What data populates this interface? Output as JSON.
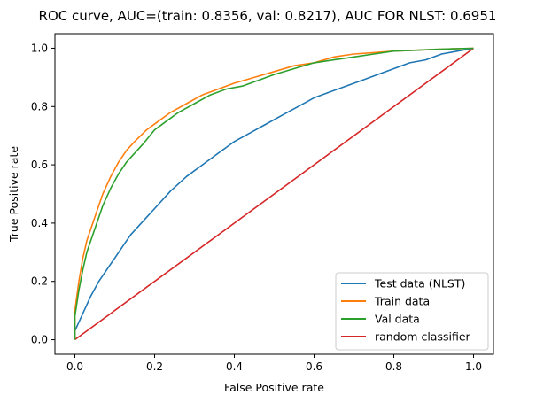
{
  "chart_data": {
    "type": "line",
    "title": "ROC curve, AUC=(train: 0.8356, val: 0.8217), AUC FOR NLST: 0.6951",
    "xlabel": "False Positive rate",
    "ylabel": "True Positive rate",
    "xlim": [
      -0.05,
      1.05
    ],
    "ylim": [
      -0.05,
      1.05
    ],
    "xticks": [
      0.0,
      0.2,
      0.4,
      0.6,
      0.8,
      1.0
    ],
    "xtick_labels": [
      "0.0",
      "0.2",
      "0.4",
      "0.6",
      "0.8",
      "1.0"
    ],
    "yticks": [
      0.0,
      0.2,
      0.4,
      0.6,
      0.8,
      1.0
    ],
    "ytick_labels": [
      "0.0",
      "0.2",
      "0.4",
      "0.6",
      "0.8",
      "1.0"
    ],
    "grid": false,
    "legend_position": "lower-right",
    "series": [
      {
        "name": "Test data (NLST)",
        "color": "#1f77b4",
        "x": [
          0.0,
          0.0,
          0.02,
          0.04,
          0.06,
          0.08,
          0.1,
          0.12,
          0.14,
          0.16,
          0.18,
          0.2,
          0.24,
          0.28,
          0.32,
          0.36,
          0.4,
          0.44,
          0.48,
          0.52,
          0.56,
          0.6,
          0.64,
          0.68,
          0.72,
          0.76,
          0.8,
          0.84,
          0.88,
          0.92,
          0.96,
          1.0
        ],
        "y": [
          0.0,
          0.03,
          0.09,
          0.15,
          0.2,
          0.24,
          0.28,
          0.32,
          0.36,
          0.39,
          0.42,
          0.45,
          0.51,
          0.56,
          0.6,
          0.64,
          0.68,
          0.71,
          0.74,
          0.77,
          0.8,
          0.83,
          0.85,
          0.87,
          0.89,
          0.91,
          0.93,
          0.95,
          0.96,
          0.98,
          0.99,
          1.0
        ]
      },
      {
        "name": "Train data",
        "color": "#ff7f0e",
        "x": [
          0.0,
          0.0,
          0.01,
          0.02,
          0.03,
          0.05,
          0.07,
          0.09,
          0.11,
          0.13,
          0.15,
          0.18,
          0.21,
          0.24,
          0.28,
          0.32,
          0.36,
          0.4,
          0.45,
          0.5,
          0.55,
          0.6,
          0.65,
          0.7,
          0.75,
          0.8,
          0.85,
          0.9,
          0.95,
          1.0
        ],
        "y": [
          0.0,
          0.1,
          0.2,
          0.28,
          0.34,
          0.42,
          0.5,
          0.56,
          0.61,
          0.65,
          0.68,
          0.72,
          0.75,
          0.78,
          0.81,
          0.84,
          0.86,
          0.88,
          0.9,
          0.92,
          0.94,
          0.95,
          0.97,
          0.98,
          0.985,
          0.99,
          0.993,
          0.996,
          0.998,
          1.0
        ]
      },
      {
        "name": "Val data",
        "color": "#2ca02c",
        "x": [
          0.0,
          0.0,
          0.01,
          0.02,
          0.03,
          0.05,
          0.07,
          0.09,
          0.11,
          0.13,
          0.15,
          0.17,
          0.2,
          0.23,
          0.26,
          0.3,
          0.34,
          0.38,
          0.42,
          0.46,
          0.5,
          0.55,
          0.6,
          0.65,
          0.7,
          0.75,
          0.8,
          0.85,
          0.9,
          0.95,
          1.0
        ],
        "y": [
          0.0,
          0.08,
          0.17,
          0.24,
          0.3,
          0.38,
          0.46,
          0.52,
          0.57,
          0.61,
          0.64,
          0.67,
          0.72,
          0.75,
          0.78,
          0.81,
          0.84,
          0.86,
          0.87,
          0.89,
          0.91,
          0.93,
          0.95,
          0.96,
          0.97,
          0.98,
          0.99,
          0.993,
          0.996,
          0.998,
          1.0
        ]
      },
      {
        "name": "random classifier",
        "color": "#d62728",
        "x": [
          0.0,
          1.0
        ],
        "y": [
          0.0,
          1.0
        ]
      }
    ]
  }
}
